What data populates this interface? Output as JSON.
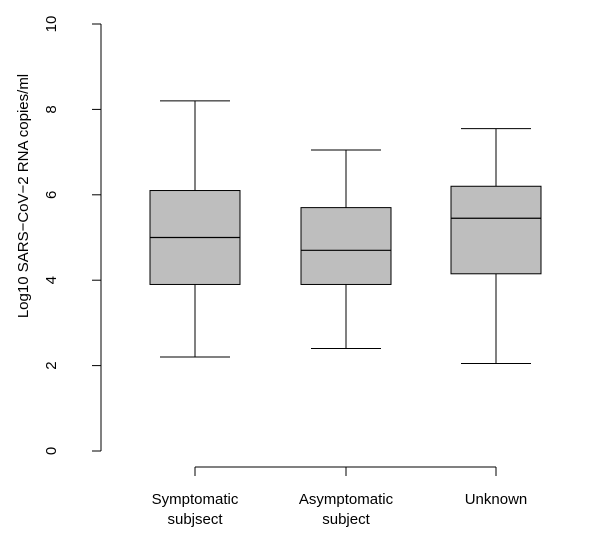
{
  "chart_data": {
    "type": "boxplot",
    "title": "",
    "xlabel": "",
    "ylabel": "Log10 SARS−CoV−2 RNA copies/ml",
    "ylim": [
      0,
      10
    ],
    "yticks": [
      "0",
      "2",
      "4",
      "6",
      "8",
      "10"
    ],
    "grid": false,
    "box_color": "#bebebe",
    "categories": [
      {
        "lines": [
          "Symptomatic",
          "subjsect"
        ],
        "min": 2.2,
        "q1": 3.9,
        "median": 5.0,
        "q3": 6.1,
        "max": 8.2
      },
      {
        "lines": [
          "Asymptomatic",
          "subject"
        ],
        "min": 2.4,
        "q1": 3.9,
        "median": 4.7,
        "q3": 5.7,
        "max": 7.05
      },
      {
        "lines": [
          "Unknown"
        ],
        "min": 2.05,
        "q1": 4.15,
        "median": 5.45,
        "q3": 6.2,
        "max": 7.55
      }
    ]
  }
}
